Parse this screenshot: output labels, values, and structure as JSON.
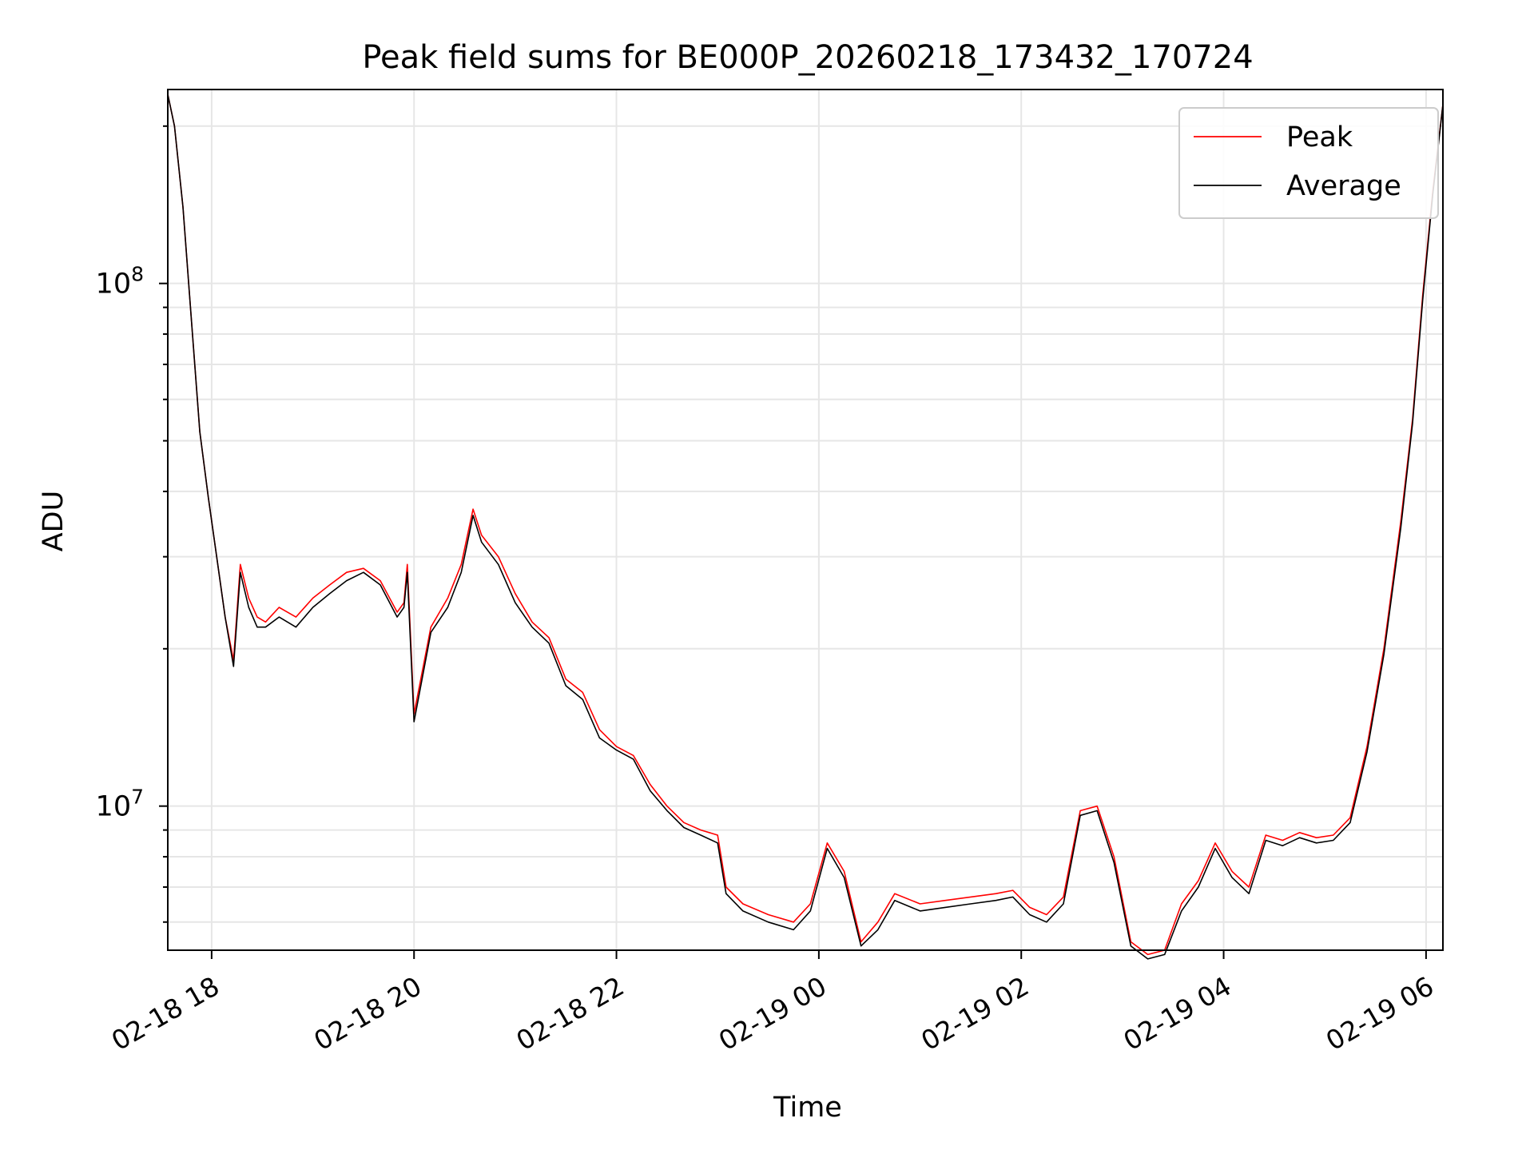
{
  "chart_data": {
    "type": "line",
    "title": "Peak field sums for BE000P_20260218_173432_170724",
    "xlabel": "Time",
    "ylabel": "ADU",
    "yscale": "log",
    "ylim": [
      5300000,
      235000000
    ],
    "xlim": [
      "2026-02-18T17:34",
      "2026-02-19T06:10"
    ],
    "x_ticks": [
      {
        "t": "2026-02-18T18:00",
        "label": "02-18 18"
      },
      {
        "t": "2026-02-18T20:00",
        "label": "02-18 20"
      },
      {
        "t": "2026-02-18T22:00",
        "label": "02-18 22"
      },
      {
        "t": "2026-02-19T00:00",
        "label": "02-19 00"
      },
      {
        "t": "2026-02-19T02:00",
        "label": "02-19 02"
      },
      {
        "t": "2026-02-19T04:00",
        "label": "02-19 04"
      },
      {
        "t": "2026-02-19T06:00",
        "label": "02-19 06"
      }
    ],
    "y_ticks": [
      {
        "value": 10000000,
        "label": "10^7"
      },
      {
        "value": 100000000,
        "label": "10^8"
      }
    ],
    "grid": true,
    "legend_position": "top-right",
    "series": [
      {
        "name": "Peak",
        "color": "#ff0000",
        "x": [
          "2026-02-18T17:34",
          "2026-02-18T17:38",
          "2026-02-18T17:43",
          "2026-02-18T17:48",
          "2026-02-18T17:53",
          "2026-02-18T17:58",
          "2026-02-18T18:03",
          "2026-02-18T18:08",
          "2026-02-18T18:13",
          "2026-02-18T18:17",
          "2026-02-18T18:22",
          "2026-02-18T18:27",
          "2026-02-18T18:32",
          "2026-02-18T18:40",
          "2026-02-18T18:50",
          "2026-02-18T19:00",
          "2026-02-18T19:10",
          "2026-02-18T19:20",
          "2026-02-18T19:30",
          "2026-02-18T19:40",
          "2026-02-18T19:50",
          "2026-02-18T19:54",
          "2026-02-18T19:56",
          "2026-02-18T20:00",
          "2026-02-18T20:10",
          "2026-02-18T20:20",
          "2026-02-18T20:28",
          "2026-02-18T20:35",
          "2026-02-18T20:40",
          "2026-02-18T20:50",
          "2026-02-18T21:00",
          "2026-02-18T21:10",
          "2026-02-18T21:20",
          "2026-02-18T21:30",
          "2026-02-18T21:40",
          "2026-02-18T21:50",
          "2026-02-18T22:00",
          "2026-02-18T22:10",
          "2026-02-18T22:20",
          "2026-02-18T22:30",
          "2026-02-18T22:40",
          "2026-02-18T22:50",
          "2026-02-18T23:00",
          "2026-02-18T23:05",
          "2026-02-18T23:15",
          "2026-02-18T23:30",
          "2026-02-18T23:45",
          "2026-02-18T23:55",
          "2026-02-19T00:05",
          "2026-02-19T00:15",
          "2026-02-19T00:25",
          "2026-02-19T00:35",
          "2026-02-19T00:45",
          "2026-02-19T01:00",
          "2026-02-19T01:15",
          "2026-02-19T01:30",
          "2026-02-19T01:45",
          "2026-02-19T01:55",
          "2026-02-19T02:05",
          "2026-02-19T02:15",
          "2026-02-19T02:25",
          "2026-02-19T02:35",
          "2026-02-19T02:45",
          "2026-02-19T02:55",
          "2026-02-19T03:05",
          "2026-02-19T03:15",
          "2026-02-19T03:25",
          "2026-02-19T03:35",
          "2026-02-19T03:45",
          "2026-02-19T03:55",
          "2026-02-19T04:05",
          "2026-02-19T04:15",
          "2026-02-19T04:25",
          "2026-02-19T04:35",
          "2026-02-19T04:45",
          "2026-02-19T04:55",
          "2026-02-19T05:05",
          "2026-02-19T05:15",
          "2026-02-19T05:25",
          "2026-02-19T05:35",
          "2026-02-19T05:45",
          "2026-02-19T05:52",
          "2026-02-19T05:58",
          "2026-02-19T06:04",
          "2026-02-19T06:10"
        ],
        "values": [
          230000000,
          200000000,
          140000000,
          85000000,
          52000000,
          39000000,
          30000000,
          23000000,
          19000000,
          29000000,
          25000000,
          23000000,
          22500000,
          24000000,
          23000000,
          25000000,
          26500000,
          28000000,
          28500000,
          27000000,
          23500000,
          24500000,
          29000000,
          15000000,
          22000000,
          25000000,
          29000000,
          37000000,
          33000000,
          30000000,
          25500000,
          22500000,
          21000000,
          17500000,
          16500000,
          14000000,
          13000000,
          12500000,
          11000000,
          10000000,
          9300000,
          9000000,
          8800000,
          7000000,
          6500000,
          6200000,
          6000000,
          6500000,
          8500000,
          7500000,
          5500000,
          6000000,
          6800000,
          6500000,
          6600000,
          6700000,
          6800000,
          6900000,
          6400000,
          6200000,
          6700000,
          9800000,
          10000000,
          8000000,
          5500000,
          5200000,
          5300000,
          6500000,
          7200000,
          8500000,
          7500000,
          7000000,
          8800000,
          8600000,
          8900000,
          8700000,
          8800000,
          9500000,
          13000000,
          20000000,
          35000000,
          55000000,
          95000000,
          150000000,
          220000000
        ]
      },
      {
        "name": "Average",
        "color": "#000000",
        "x": [
          "2026-02-18T17:34",
          "2026-02-18T17:38",
          "2026-02-18T17:43",
          "2026-02-18T17:48",
          "2026-02-18T17:53",
          "2026-02-18T17:58",
          "2026-02-18T18:03",
          "2026-02-18T18:08",
          "2026-02-18T18:13",
          "2026-02-18T18:17",
          "2026-02-18T18:22",
          "2026-02-18T18:27",
          "2026-02-18T18:32",
          "2026-02-18T18:40",
          "2026-02-18T18:50",
          "2026-02-18T19:00",
          "2026-02-18T19:10",
          "2026-02-18T19:20",
          "2026-02-18T19:30",
          "2026-02-18T19:40",
          "2026-02-18T19:50",
          "2026-02-18T19:54",
          "2026-02-18T19:56",
          "2026-02-18T20:00",
          "2026-02-18T20:10",
          "2026-02-18T20:20",
          "2026-02-18T20:28",
          "2026-02-18T20:35",
          "2026-02-18T20:40",
          "2026-02-18T20:50",
          "2026-02-18T21:00",
          "2026-02-18T21:10",
          "2026-02-18T21:20",
          "2026-02-18T21:30",
          "2026-02-18T21:40",
          "2026-02-18T21:50",
          "2026-02-18T22:00",
          "2026-02-18T22:10",
          "2026-02-18T22:20",
          "2026-02-18T22:30",
          "2026-02-18T22:40",
          "2026-02-18T22:50",
          "2026-02-18T23:00",
          "2026-02-18T23:05",
          "2026-02-18T23:15",
          "2026-02-18T23:30",
          "2026-02-18T23:45",
          "2026-02-18T23:55",
          "2026-02-19T00:05",
          "2026-02-19T00:15",
          "2026-02-19T00:25",
          "2026-02-19T00:35",
          "2026-02-19T00:45",
          "2026-02-19T01:00",
          "2026-02-19T01:15",
          "2026-02-19T01:30",
          "2026-02-19T01:45",
          "2026-02-19T01:55",
          "2026-02-19T02:05",
          "2026-02-19T02:15",
          "2026-02-19T02:25",
          "2026-02-19T02:35",
          "2026-02-19T02:45",
          "2026-02-19T02:55",
          "2026-02-19T03:05",
          "2026-02-19T03:15",
          "2026-02-19T03:25",
          "2026-02-19T03:35",
          "2026-02-19T03:45",
          "2026-02-19T03:55",
          "2026-02-19T04:05",
          "2026-02-19T04:15",
          "2026-02-19T04:25",
          "2026-02-19T04:35",
          "2026-02-19T04:45",
          "2026-02-19T04:55",
          "2026-02-19T05:05",
          "2026-02-19T05:15",
          "2026-02-19T05:25",
          "2026-02-19T05:35",
          "2026-02-19T05:45",
          "2026-02-19T05:52",
          "2026-02-19T05:58",
          "2026-02-19T06:04",
          "2026-02-19T06:10"
        ],
        "values": [
          230000000,
          200000000,
          140000000,
          85000000,
          52000000,
          39000000,
          30000000,
          23000000,
          18500000,
          28000000,
          24000000,
          22000000,
          22000000,
          23000000,
          22000000,
          24000000,
          25500000,
          27000000,
          28000000,
          26500000,
          23000000,
          24000000,
          28000000,
          14500000,
          21500000,
          24000000,
          28000000,
          36000000,
          32000000,
          29000000,
          24500000,
          22000000,
          20500000,
          17000000,
          16000000,
          13500000,
          12800000,
          12300000,
          10700000,
          9800000,
          9100000,
          8800000,
          8500000,
          6800000,
          6300000,
          6000000,
          5800000,
          6300000,
          8300000,
          7300000,
          5400000,
          5800000,
          6600000,
          6300000,
          6400000,
          6500000,
          6600000,
          6700000,
          6200000,
          6000000,
          6500000,
          9600000,
          9800000,
          7800000,
          5400000,
          5100000,
          5200000,
          6300000,
          7000000,
          8300000,
          7300000,
          6800000,
          8600000,
          8400000,
          8700000,
          8500000,
          8600000,
          9300000,
          12700000,
          19500000,
          34000000,
          54000000,
          93000000,
          148000000,
          220000000
        ]
      }
    ]
  }
}
